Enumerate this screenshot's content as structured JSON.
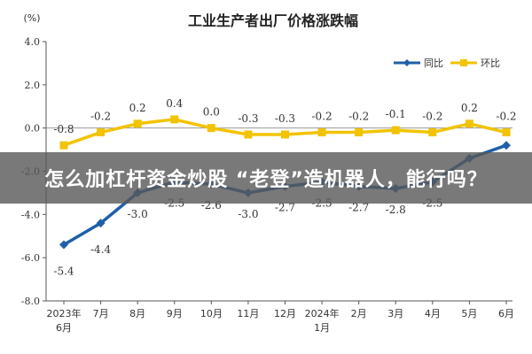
{
  "chart_data": {
    "type": "line",
    "title": "工业生产者出厂价格涨跌幅",
    "ylabel": "(%)",
    "ylim": [
      -8.0,
      4.0
    ],
    "yticks": [
      "4.0",
      "2.0",
      "0.0",
      "-2.0",
      "-4.0",
      "-6.0",
      "-8.0"
    ],
    "categories": [
      "2023年6月",
      "7月",
      "8月",
      "9月",
      "10月",
      "11月",
      "12月",
      "2024年1月",
      "2月",
      "3月",
      "4月",
      "5月",
      "6月"
    ],
    "category_lines": [
      [
        "2023年",
        "6月"
      ],
      [
        "7月"
      ],
      [
        "8月"
      ],
      [
        "9月"
      ],
      [
        "10月"
      ],
      [
        "11月"
      ],
      [
        "12月"
      ],
      [
        "2024年",
        "1月"
      ],
      [
        "2月"
      ],
      [
        "3月"
      ],
      [
        "4月"
      ],
      [
        "5月"
      ],
      [
        "6月"
      ]
    ],
    "series": [
      {
        "name": "同比",
        "color": "#1f5fa8",
        "values": [
          -5.4,
          -4.4,
          -3.0,
          -2.5,
          -2.6,
          -3.0,
          -2.7,
          -2.5,
          -2.7,
          -2.8,
          -2.5,
          -1.4,
          -0.8
        ],
        "labels": [
          "-5.4",
          "-4.4",
          "-3.0",
          "-2.5",
          "-2.6",
          "-3.0",
          "-2.7",
          "-2.5",
          "-2.7",
          "-2.8",
          "-2.5",
          "",
          ""
        ]
      },
      {
        "name": "环比",
        "color": "#f2c300",
        "values": [
          -0.8,
          -0.2,
          0.2,
          0.4,
          0.0,
          -0.3,
          -0.3,
          -0.2,
          -0.2,
          -0.1,
          -0.2,
          0.2,
          -0.2
        ],
        "labels": [
          "-0.8",
          "-0.2",
          "0.2",
          "0.4",
          "0.0",
          "-0.3",
          "-0.3",
          "-0.2",
          "-0.2",
          "-0.1",
          "-0.2",
          "0.2",
          "-0.2"
        ]
      }
    ],
    "legend_position": "top-right",
    "grid": false
  },
  "overlay": {
    "banner_text": "怎么加杠杆资金炒股 “老登”造机器人，能行吗？"
  }
}
